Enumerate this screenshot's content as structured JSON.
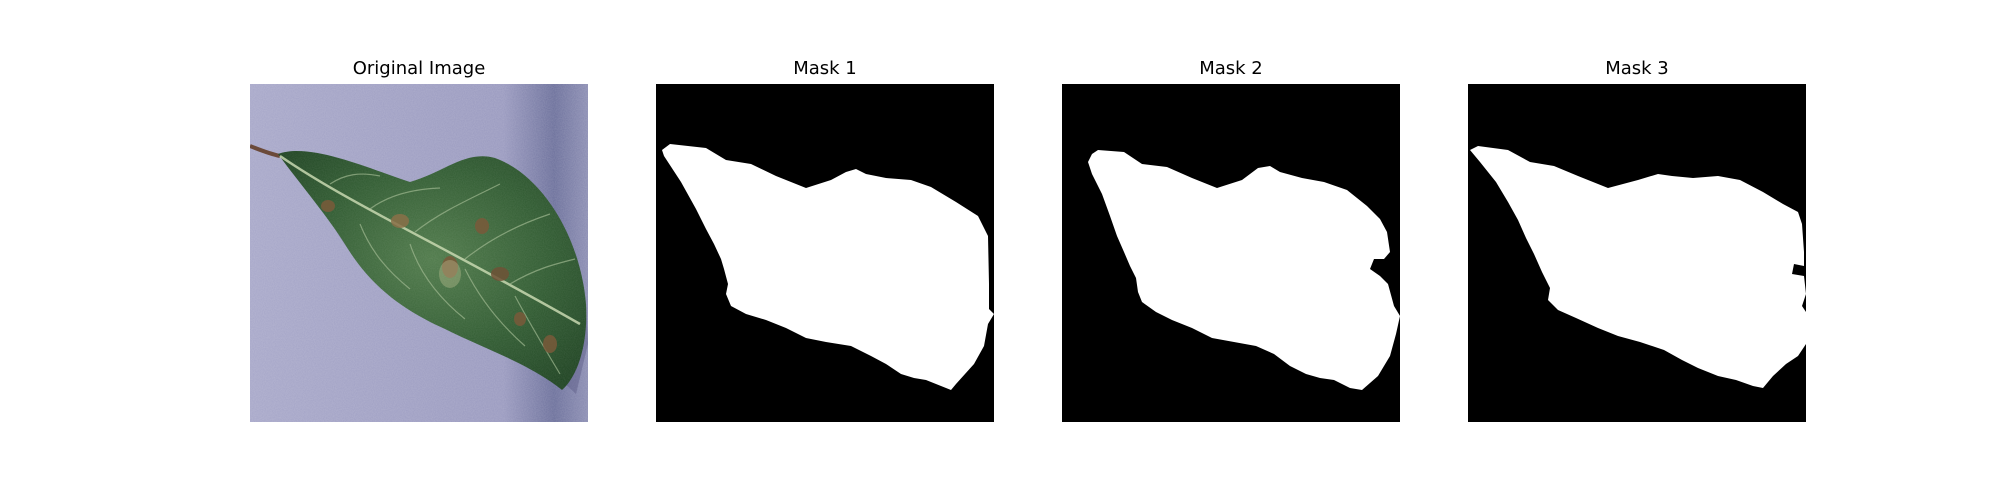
{
  "figure": {
    "panels": [
      {
        "title": "Original Image",
        "content": "photo of a green leaf with brown spots on a lavender textured background"
      },
      {
        "title": "Mask 1",
        "content": "binary leaf segmentation mask"
      },
      {
        "title": "Mask 2",
        "content": "binary leaf segmentation mask"
      },
      {
        "title": "Mask 3",
        "content": "binary leaf segmentation mask"
      }
    ],
    "colors": {
      "mask_background": "#000000",
      "mask_foreground": "#ffffff",
      "photo_background": "#9c9cc0",
      "leaf": "#2f5a30"
    }
  }
}
